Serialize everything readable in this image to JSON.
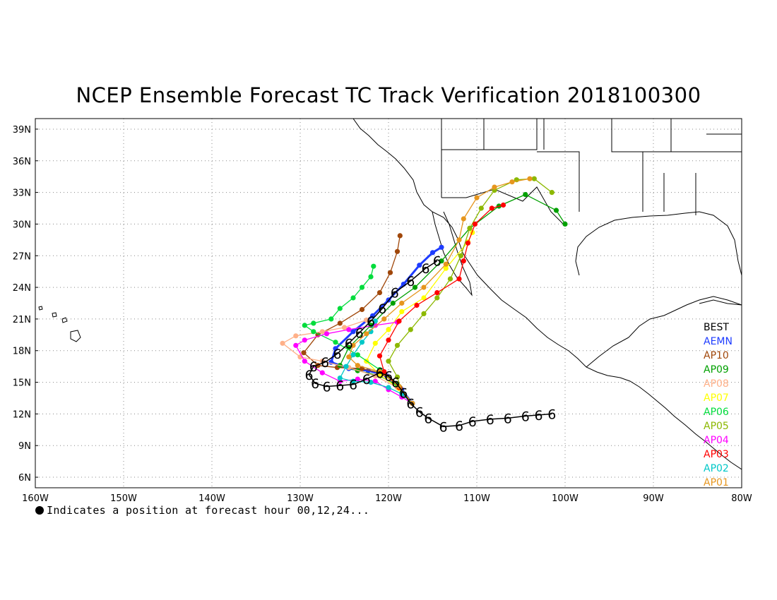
{
  "title": "NCEP Ensemble Forecast TC Track Verification 2018100300",
  "footnote": "Indicates a position at forecast hour 00,12,24...",
  "map": {
    "lon_range": [
      -160,
      -80
    ],
    "lat_range": [
      5,
      40
    ],
    "lon_ticks": [
      {
        "value": -160,
        "label": "160W"
      },
      {
        "value": -150,
        "label": "150W"
      },
      {
        "value": -140,
        "label": "140W"
      },
      {
        "value": -130,
        "label": "130W"
      },
      {
        "value": -120,
        "label": "120W"
      },
      {
        "value": -110,
        "label": "110W"
      },
      {
        "value": -100,
        "label": "100W"
      },
      {
        "value": -90,
        "label": "90W"
      },
      {
        "value": -80,
        "label": "80W"
      }
    ],
    "lat_ticks": [
      {
        "value": 39,
        "label": "39N"
      },
      {
        "value": 36,
        "label": "36N"
      },
      {
        "value": 33,
        "label": "33N"
      },
      {
        "value": 30,
        "label": "30N"
      },
      {
        "value": 27,
        "label": "27N"
      },
      {
        "value": 24,
        "label": "24N"
      },
      {
        "value": 21,
        "label": "21N"
      },
      {
        "value": 18,
        "label": "18N"
      },
      {
        "value": 15,
        "label": "15N"
      },
      {
        "value": 12,
        "label": "12N"
      },
      {
        "value": 9,
        "label": "9N"
      },
      {
        "value": 6,
        "label": "6N"
      }
    ],
    "gridlines": "dotted"
  },
  "best_track": {
    "name": "BEST",
    "color": "#000000",
    "symbol": "6",
    "points": [
      [
        -101.5,
        12.0
      ],
      [
        -103.0,
        11.9
      ],
      [
        -104.5,
        11.8
      ],
      [
        -106.5,
        11.6
      ],
      [
        -108.5,
        11.5
      ],
      [
        -110.5,
        11.3
      ],
      [
        -112.0,
        10.9
      ],
      [
        -113.8,
        10.8
      ],
      [
        -115.5,
        11.6
      ],
      [
        -116.5,
        12.2
      ],
      [
        -117.5,
        13.0
      ],
      [
        -118.3,
        14.0
      ],
      [
        -119.2,
        15.0
      ],
      [
        -120.0,
        15.6
      ],
      [
        -121.0,
        15.9
      ],
      [
        -122.5,
        15.3
      ],
      [
        -124.0,
        14.8
      ],
      [
        -125.5,
        14.7
      ],
      [
        -127.0,
        14.6
      ],
      [
        -128.3,
        14.9
      ],
      [
        -129.0,
        15.7
      ],
      [
        -128.5,
        16.5
      ],
      [
        -127.2,
        16.9
      ],
      [
        -125.8,
        17.7
      ],
      [
        -124.5,
        18.7
      ],
      [
        -123.3,
        19.7
      ],
      [
        -122.0,
        20.8
      ],
      [
        -120.7,
        22.0
      ],
      [
        -119.3,
        23.5
      ],
      [
        -117.5,
        24.6
      ],
      [
        -115.8,
        25.8
      ],
      [
        -114.5,
        26.5
      ]
    ]
  },
  "legend": [
    {
      "name": "BEST",
      "color": "#000000"
    },
    {
      "name": "AEMN",
      "color": "#1e3cff"
    },
    {
      "name": "AP10",
      "color": "#a0470a"
    },
    {
      "name": "AP09",
      "color": "#00a000"
    },
    {
      "name": "AP08",
      "color": "#ffb088"
    },
    {
      "name": "AP07",
      "color": "#ffff00"
    },
    {
      "name": "AP06",
      "color": "#00dc3c"
    },
    {
      "name": "AP05",
      "color": "#8cb800"
    },
    {
      "name": "AP04",
      "color": "#ff00ff"
    },
    {
      "name": "AP03",
      "color": "#ff0000"
    },
    {
      "name": "AP02",
      "color": "#00c8c8"
    },
    {
      "name": "AP01",
      "color": "#e6961e"
    }
  ],
  "ensemble_tracks": [
    {
      "name": "AEMN",
      "color": "#1e3cff",
      "points": [
        [
          -117.3,
          13.0
        ],
        [
          -118.5,
          14.3
        ],
        [
          -120.2,
          15.6
        ],
        [
          -122.3,
          16.1
        ],
        [
          -124.5,
          16.3
        ],
        [
          -126.5,
          16.9
        ],
        [
          -126.0,
          18.2
        ],
        [
          -124.0,
          19.8
        ],
        [
          -121.8,
          21.3
        ],
        [
          -120.0,
          22.8
        ],
        [
          -118.3,
          24.3
        ],
        [
          -116.5,
          26.1
        ],
        [
          -115.0,
          27.3
        ],
        [
          -114.0,
          27.8
        ]
      ]
    },
    {
      "name": "AP10",
      "color": "#a0470a",
      "points": [
        [
          -117.3,
          13.0
        ],
        [
          -118.7,
          14.5
        ],
        [
          -120.5,
          15.8
        ],
        [
          -123.0,
          16.3
        ],
        [
          -125.8,
          16.4
        ],
        [
          -128.0,
          16.6
        ],
        [
          -129.6,
          17.8
        ],
        [
          -128.0,
          19.5
        ],
        [
          -125.5,
          20.6
        ],
        [
          -123.0,
          21.9
        ],
        [
          -121.0,
          23.5
        ],
        [
          -119.8,
          25.4
        ],
        [
          -119.0,
          27.4
        ],
        [
          -118.7,
          28.9
        ]
      ]
    },
    {
      "name": "AP09",
      "color": "#00a000",
      "points": [
        [
          -117.3,
          13.0
        ],
        [
          -118.8,
          14.6
        ],
        [
          -121.0,
          15.6
        ],
        [
          -123.5,
          16.1
        ],
        [
          -125.5,
          16.6
        ],
        [
          -124.5,
          18.3
        ],
        [
          -122.0,
          20.4
        ],
        [
          -119.5,
          22.5
        ],
        [
          -117.0,
          24.0
        ],
        [
          -114.0,
          26.5
        ],
        [
          -110.8,
          29.6
        ],
        [
          -107.5,
          31.7
        ],
        [
          -104.5,
          32.8
        ],
        [
          -101.0,
          31.3
        ],
        [
          -100.0,
          30.0
        ]
      ]
    },
    {
      "name": "AP08",
      "color": "#ffb088",
      "points": [
        [
          -117.3,
          13.0
        ],
        [
          -119.0,
          14.5
        ],
        [
          -121.5,
          15.6
        ],
        [
          -124.5,
          16.4
        ],
        [
          -127.5,
          17.0
        ],
        [
          -130.0,
          17.4
        ],
        [
          -132.0,
          18.7
        ],
        [
          -130.5,
          19.4
        ],
        [
          -127.5,
          19.8
        ],
        [
          -125.0,
          20.2
        ],
        [
          -122.5,
          20.9
        ]
      ]
    },
    {
      "name": "AP07",
      "color": "#ffff00",
      "points": [
        [
          -117.3,
          13.0
        ],
        [
          -118.8,
          14.4
        ],
        [
          -121.0,
          15.7
        ],
        [
          -122.5,
          17.0
        ],
        [
          -121.5,
          18.7
        ],
        [
          -120.0,
          20.0
        ],
        [
          -118.5,
          21.7
        ],
        [
          -116.0,
          23.0
        ],
        [
          -113.5,
          25.8
        ],
        [
          -111.0,
          28.3
        ],
        [
          -110.5,
          29.2
        ]
      ]
    },
    {
      "name": "AP06",
      "color": "#00dc3c",
      "points": [
        [
          -117.3,
          13.0
        ],
        [
          -119.0,
          14.8
        ],
        [
          -121.0,
          16.2
        ],
        [
          -123.5,
          17.6
        ],
        [
          -126.0,
          18.8
        ],
        [
          -128.5,
          19.8
        ],
        [
          -129.5,
          20.4
        ],
        [
          -128.5,
          20.6
        ],
        [
          -126.5,
          21.0
        ],
        [
          -125.5,
          22.0
        ],
        [
          -124.0,
          23.0
        ],
        [
          -123.0,
          24.0
        ],
        [
          -122.0,
          25.0
        ],
        [
          -121.7,
          26.0
        ]
      ]
    },
    {
      "name": "AP05",
      "color": "#8cb800",
      "points": [
        [
          -117.3,
          13.0
        ],
        [
          -118.5,
          14.0
        ],
        [
          -119.0,
          15.5
        ],
        [
          -120.0,
          17.0
        ],
        [
          -119.0,
          18.5
        ],
        [
          -117.5,
          20.0
        ],
        [
          -116.0,
          21.5
        ],
        [
          -114.5,
          23.0
        ],
        [
          -113.0,
          24.8
        ],
        [
          -111.8,
          27.0
        ],
        [
          -110.8,
          29.6
        ],
        [
          -109.5,
          31.5
        ],
        [
          -108.0,
          33.2
        ],
        [
          -105.5,
          34.2
        ],
        [
          -103.5,
          34.3
        ],
        [
          -101.5,
          33.0
        ]
      ]
    },
    {
      "name": "AP04",
      "color": "#ff00ff",
      "points": [
        [
          -117.3,
          13.0
        ],
        [
          -118.5,
          13.6
        ],
        [
          -120.0,
          14.3
        ],
        [
          -121.5,
          15.1
        ],
        [
          -123.5,
          15.3
        ],
        [
          -125.5,
          15.1
        ],
        [
          -127.5,
          15.9
        ],
        [
          -129.5,
          17.0
        ],
        [
          -130.5,
          18.5
        ],
        [
          -129.5,
          19.0
        ],
        [
          -127.0,
          19.6
        ],
        [
          -124.5,
          20.0
        ],
        [
          -121.5,
          20.4
        ],
        [
          -119.0,
          20.7
        ]
      ]
    },
    {
      "name": "AP03",
      "color": "#ff0000",
      "points": [
        [
          -117.3,
          13.0
        ],
        [
          -118.8,
          14.5
        ],
        [
          -120.5,
          16.0
        ],
        [
          -121.0,
          17.5
        ],
        [
          -120.0,
          19.0
        ],
        [
          -118.8,
          20.8
        ],
        [
          -116.8,
          22.3
        ],
        [
          -114.5,
          23.5
        ],
        [
          -112.0,
          24.8
        ],
        [
          -111.5,
          26.5
        ],
        [
          -111.0,
          28.2
        ],
        [
          -110.2,
          30.0
        ],
        [
          -108.3,
          31.5
        ],
        [
          -107.0,
          31.8
        ]
      ]
    },
    {
      "name": "AP02",
      "color": "#00c8c8",
      "points": [
        [
          -117.3,
          13.0
        ],
        [
          -118.5,
          13.9
        ],
        [
          -120.0,
          14.5
        ],
        [
          -122.0,
          15.0
        ],
        [
          -124.0,
          15.1
        ],
        [
          -125.5,
          15.4
        ],
        [
          -124.8,
          16.5
        ],
        [
          -124.0,
          17.6
        ],
        [
          -123.0,
          18.8
        ],
        [
          -122.0,
          19.8
        ],
        [
          -121.5,
          20.8
        ]
      ]
    },
    {
      "name": "AP01",
      "color": "#e6961e",
      "points": [
        [
          -117.3,
          13.0
        ],
        [
          -118.8,
          14.6
        ],
        [
          -121.0,
          16.0
        ],
        [
          -123.5,
          16.6
        ],
        [
          -124.5,
          17.4
        ],
        [
          -124.0,
          18.5
        ],
        [
          -122.5,
          19.6
        ],
        [
          -120.5,
          21.0
        ],
        [
          -118.5,
          22.5
        ],
        [
          -116.0,
          24.0
        ],
        [
          -113.5,
          26.2
        ],
        [
          -112.0,
          28.5
        ],
        [
          -111.5,
          30.5
        ],
        [
          -110.0,
          32.5
        ],
        [
          -108.0,
          33.5
        ],
        [
          -106.0,
          34.0
        ],
        [
          -104.0,
          34.3
        ]
      ]
    }
  ]
}
